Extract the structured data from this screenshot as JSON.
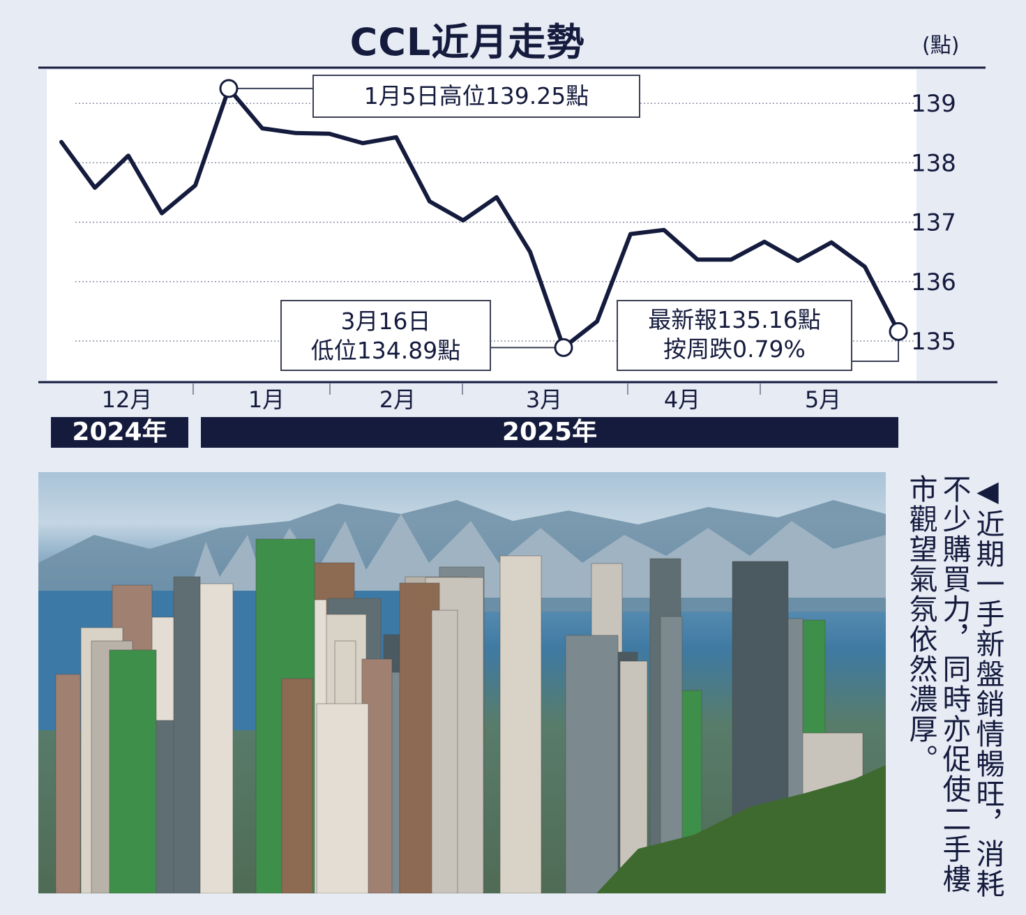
{
  "chart_data": {
    "type": "line",
    "title": "CCL近月走勢",
    "unit": "(點)",
    "ylim": [
      134.4,
      139.8
    ],
    "yticks": [
      "139",
      "138",
      "137",
      "136",
      "135"
    ],
    "grid": true,
    "months": [
      "12月",
      "1月",
      "2月",
      "3月",
      "4月",
      "5月"
    ],
    "years": [
      "2024年",
      "2025年"
    ],
    "series": [
      {
        "values": [
          138.35,
          137.58,
          138.12,
          137.15,
          137.62,
          139.25,
          138.58,
          138.5,
          138.49,
          138.33,
          138.43,
          137.35,
          137.03,
          137.42,
          136.5,
          134.89,
          135.33,
          136.8,
          136.87,
          136.37,
          136.37,
          136.67,
          136.35,
          136.66,
          136.25,
          135.16
        ]
      }
    ],
    "annotations": {
      "high": [
        "1月5日高位139.25點"
      ],
      "low": [
        "3月16日",
        "低位134.89點"
      ],
      "latest": [
        "最新報135.16點",
        "按周跌0.79%"
      ]
    }
  },
  "photo": {
    "caption": "◀近期一手新盤銷情暢旺，消耗不少購買力，同時亦促使二手樓市觀望氣氛依然濃厚。"
  }
}
